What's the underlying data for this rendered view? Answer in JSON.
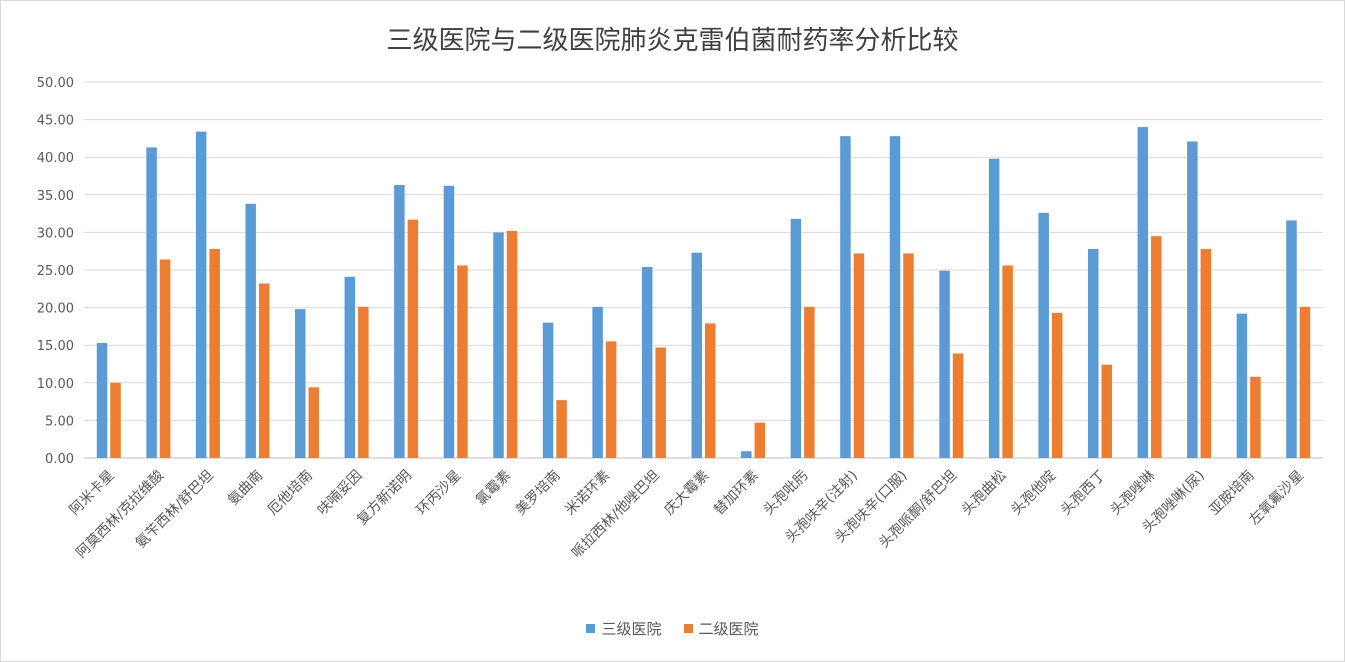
{
  "chart_data": {
    "type": "bar",
    "title": "三级医院与二级医院肺炎克雷伯菌耐药率分析比较",
    "xlabel": "",
    "ylabel": "",
    "ylim": [
      0,
      50
    ],
    "yticks": [
      "0.00",
      "5.00",
      "10.00",
      "15.00",
      "20.00",
      "25.00",
      "30.00",
      "35.00",
      "40.00",
      "45.00",
      "50.00"
    ],
    "grid": true,
    "legend_position": "bottom",
    "categories": [
      "阿米卡星",
      "阿莫西林/克拉维酸",
      "氨苄西林/舒巴坦",
      "氨曲南",
      "厄他培南",
      "呋喃妥因",
      "复方新诺明",
      "环丙沙星",
      "氯霉素",
      "美罗培南",
      "米诺环素",
      "哌拉西林/他唑巴坦",
      "庆大霉素",
      "替加环素",
      "头孢吡肟",
      "头孢呋辛(注射)",
      "头孢呋辛(口服)",
      "头孢哌酮/舒巴坦",
      "头孢曲松",
      "头孢他啶",
      "头孢西丁",
      "头孢唑啉",
      "头孢唑啉(尿)",
      "亚胺培南",
      "左氧氟沙星"
    ],
    "series": [
      {
        "name": "三级医院",
        "color": "#5b9bd5",
        "values": [
          15.3,
          41.3,
          43.4,
          33.8,
          19.8,
          24.1,
          36.3,
          36.2,
          30.0,
          18.0,
          20.1,
          25.4,
          27.3,
          0.9,
          31.8,
          42.8,
          42.8,
          24.9,
          39.8,
          32.6,
          27.8,
          44.0,
          42.1,
          19.2,
          31.6
        ]
      },
      {
        "name": "二级医院",
        "color": "#ed7d31",
        "values": [
          10.0,
          26.4,
          27.8,
          23.2,
          9.4,
          20.1,
          31.7,
          25.6,
          30.2,
          7.7,
          15.5,
          14.7,
          17.9,
          4.7,
          20.1,
          27.2,
          27.2,
          13.9,
          25.6,
          19.3,
          12.4,
          29.5,
          27.8,
          10.8,
          20.1
        ]
      }
    ]
  }
}
